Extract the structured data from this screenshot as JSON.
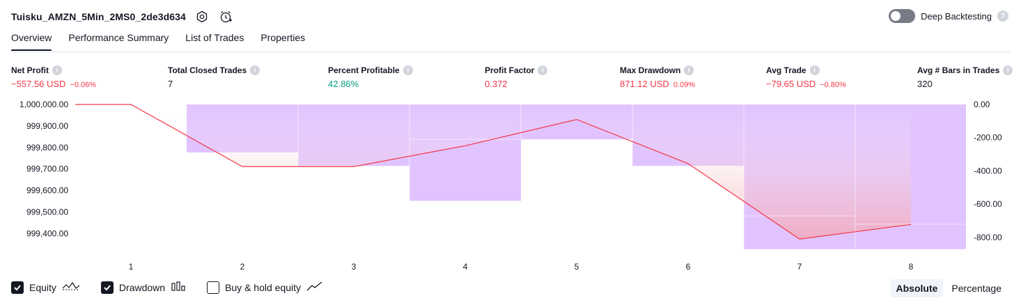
{
  "header": {
    "strategy_name": "Tuisku_AMZN_5Min_2MS0_2de3d634",
    "deep_backtesting_label": "Deep Backtesting",
    "help_glyph": "?"
  },
  "tabs": [
    "Overview",
    "Performance Summary",
    "List of Trades",
    "Properties"
  ],
  "metrics": [
    {
      "label": "Net Profit",
      "value": "−557.56 USD",
      "pct": "−0.06%",
      "tone": "neg"
    },
    {
      "label": "Total Closed Trades",
      "value": "7",
      "pct": "",
      "tone": "plain"
    },
    {
      "label": "Percent Profitable",
      "value": "42.86%",
      "pct": "",
      "tone": "pos"
    },
    {
      "label": "Profit Factor",
      "value": "0.372",
      "pct": "",
      "tone": "neg"
    },
    {
      "label": "Max Drawdown",
      "value": "871.12 USD",
      "pct": "0.09%",
      "tone": "neg"
    },
    {
      "label": "Avg Trade",
      "value": "−79.65 USD",
      "pct": "−0.80%",
      "tone": "neg"
    },
    {
      "label": "Avg # Bars in Trades",
      "value": "320",
      "pct": "",
      "tone": "plain"
    }
  ],
  "info_glyph": "i",
  "chart_data": {
    "type": "bar",
    "categories": [
      "1",
      "2",
      "3",
      "4",
      "5",
      "6",
      "7",
      "8"
    ],
    "left_axis": {
      "ticks": [
        "1,000,000.00",
        "999,900.00",
        "999,800.00",
        "999,700.00",
        "999,600.00",
        "999,500.00",
        "999,400.00"
      ],
      "ylim": [
        999320,
        1000000
      ]
    },
    "right_axis": {
      "ticks": [
        "0.00",
        "-200.00",
        "-400.00",
        "-600.00",
        "-800.00"
      ],
      "ylim": [
        -880,
        0
      ]
    },
    "series": [
      {
        "name": "Equity",
        "type": "line",
        "values": [
          1000000,
          999711,
          999711,
          999808,
          999930,
          999725,
          999374,
          999442
        ]
      },
      {
        "name": "Drawdown",
        "type": "bar",
        "values": [
          0,
          -289,
          -371,
          -580,
          -210,
          -371,
          -871,
          -871
        ]
      }
    ],
    "drawdown_bar_end_values": [
      -289,
      -371,
      -371,
      -210,
      0,
      -371,
      -671,
      -720
    ],
    "colors": {
      "equity_line": "#f23645",
      "drawdown_bar": "#e1c4ff",
      "equity_fill": "#f5a3ab"
    }
  },
  "legend": [
    {
      "label": "Equity",
      "checked": true,
      "icon": "equity-line-icon"
    },
    {
      "label": "Drawdown",
      "checked": true,
      "icon": "drawdown-bars-icon"
    },
    {
      "label": "Buy & hold equity",
      "checked": false,
      "icon": "buy-hold-line-icon"
    }
  ],
  "modes": [
    "Absolute",
    "Percentage"
  ]
}
